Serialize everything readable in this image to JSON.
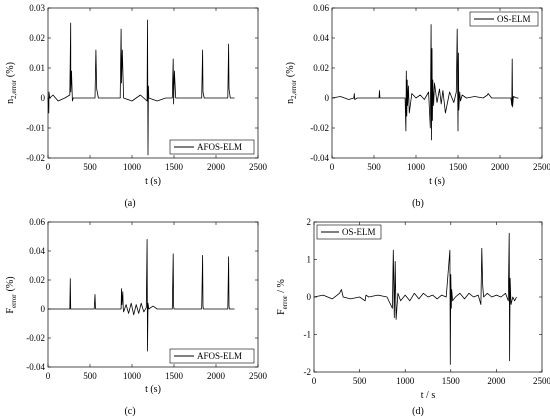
{
  "chart_data": [
    {
      "type": "line",
      "caption": "(a)",
      "xlabel": "t (s)",
      "ylabel_main": "n",
      "ylabel_sub": "2,error",
      "ylabel_unit": "(%)",
      "xlim": [
        0,
        2500
      ],
      "ylim": [
        -0.02,
        0.03
      ],
      "xticks": [
        0,
        500,
        1000,
        1500,
        2000,
        2500
      ],
      "yticks": [
        -0.02,
        -0.01,
        0,
        0.01,
        0.02,
        0.03
      ],
      "xtick_labels": [
        "0",
        "500",
        "1000",
        "1500",
        "2000",
        "2500"
      ],
      "ytick_labels": [
        "-0.02",
        "-0.01",
        "0",
        "0.01",
        "0.02",
        "0.03"
      ],
      "legend": {
        "label": "AFOS-ELM",
        "position": "bottom-right"
      },
      "series": [
        {
          "x": [
            0,
            10,
            12,
            20,
            60,
            120,
            200,
            260,
            270,
            272,
            280,
            290,
            300,
            400,
            500,
            560,
            570,
            580,
            600,
            700,
            800,
            860,
            870,
            875,
            885,
            900,
            1000,
            1100,
            1180,
            1185,
            1190,
            1195,
            1200,
            1300,
            1400,
            1480,
            1490,
            1495,
            1505,
            1520,
            1600,
            1700,
            1800,
            1830,
            1840,
            1845,
            1860,
            1900,
            2000,
            2100,
            2140,
            2150,
            2155,
            2170,
            2200,
            2220
          ],
          "y": [
            0,
            -0.005,
            0.002,
            0,
            0.001,
            -0.001,
            0,
            0.001,
            0.025,
            0.002,
            0.009,
            -0.001,
            0,
            0,
            0,
            0,
            0.016,
            0.003,
            0,
            0,
            0,
            0,
            0.023,
            0.005,
            0.016,
            0,
            -0.001,
            0.001,
            -0.001,
            0.026,
            -0.019,
            0.004,
            0,
            -0.001,
            0,
            0,
            0.013,
            -0.002,
            0.009,
            0,
            0,
            0,
            0,
            0,
            0.016,
            0.002,
            0,
            0,
            0,
            0,
            0,
            0.018,
            0.003,
            0,
            0,
            0
          ]
        }
      ]
    },
    {
      "type": "line",
      "caption": "(b)",
      "xlabel": "t (s)",
      "ylabel_main": "n",
      "ylabel_sub": "2,error",
      "ylabel_unit": "(%)",
      "xlim": [
        0,
        2500
      ],
      "ylim": [
        -0.04,
        0.06
      ],
      "xticks": [
        0,
        500,
        1000,
        1500,
        2000,
        2500
      ],
      "yticks": [
        -0.04,
        -0.02,
        0,
        0.02,
        0.04,
        0.06
      ],
      "xtick_labels": [
        "0",
        "500",
        "1000",
        "1500",
        "2000",
        "2500"
      ],
      "ytick_labels": [
        "-0.04",
        "-0.02",
        "0",
        "0.02",
        "0.04",
        "0.06"
      ],
      "legend": {
        "label": "OS-ELM",
        "position": "top-right"
      },
      "series": [
        {
          "x": [
            0,
            100,
            200,
            260,
            265,
            270,
            300,
            400,
            500,
            560,
            565,
            570,
            600,
            700,
            800,
            870,
            880,
            885,
            890,
            895,
            900,
            910,
            920,
            950,
            1000,
            1050,
            1100,
            1150,
            1170,
            1180,
            1185,
            1190,
            1195,
            1200,
            1210,
            1220,
            1250,
            1280,
            1300,
            1320,
            1350,
            1400,
            1450,
            1480,
            1490,
            1500,
            1505,
            1510,
            1520,
            1530,
            1550,
            1600,
            1700,
            1800,
            1850,
            1860,
            1900,
            2000,
            2100,
            2130,
            2140,
            2145,
            2150,
            2160,
            2200,
            2220
          ],
          "y": [
            0,
            0.001,
            -0.001,
            0,
            0.003,
            -0.001,
            0,
            0,
            0,
            0,
            0.005,
            0,
            0,
            0,
            0,
            0,
            -0.022,
            0.018,
            -0.012,
            0.012,
            -0.005,
            0.008,
            -0.01,
            0.003,
            0,
            0.002,
            -0.001,
            0.004,
            -0.02,
            0.049,
            -0.028,
            0.033,
            -0.015,
            0.012,
            -0.005,
            0.01,
            -0.003,
            0.006,
            -0.004,
            0.005,
            -0.01,
            0.004,
            -0.003,
            0.004,
            0.046,
            -0.022,
            0.03,
            -0.008,
            0.004,
            -0.002,
            0.002,
            0,
            0.001,
            0,
            0.002,
            0.003,
            0,
            0,
            0,
            0,
            -0.005,
            0.026,
            -0.006,
            0.001,
            0,
            0
          ]
        }
      ]
    },
    {
      "type": "line",
      "caption": "(c)",
      "xlabel": "t (s)",
      "ylabel_main": "F",
      "ylabel_sub": "error",
      "ylabel_unit": "(%)",
      "xlim": [
        0,
        2500
      ],
      "ylim": [
        -0.04,
        0.06
      ],
      "xticks": [
        0,
        500,
        1000,
        1500,
        2000,
        2500
      ],
      "yticks": [
        -0.04,
        -0.02,
        0,
        0.02,
        0.04,
        0.06
      ],
      "xtick_labels": [
        "0",
        "500",
        "1000",
        "1500",
        "2000",
        "2500"
      ],
      "ytick_labels": [
        "-0.04",
        "-0.02",
        "0",
        "0.02",
        "0.04",
        "0.06"
      ],
      "legend": {
        "label": "AFOS-ELM",
        "position": "bottom-right"
      },
      "series": [
        {
          "x": [
            0,
            100,
            200,
            260,
            265,
            270,
            300,
            400,
            500,
            550,
            560,
            565,
            600,
            700,
            800,
            870,
            875,
            880,
            890,
            895,
            900,
            930,
            960,
            990,
            1020,
            1050,
            1080,
            1110,
            1140,
            1170,
            1180,
            1185,
            1190,
            1200,
            1250,
            1300,
            1400,
            1480,
            1490,
            1495,
            1500,
            1550,
            1600,
            1700,
            1800,
            1830,
            1840,
            1845,
            1850,
            1900,
            2000,
            2100,
            2140,
            2150,
            2155,
            2160,
            2200,
            2220
          ],
          "y": [
            0,
            0,
            0,
            0,
            0.021,
            0,
            0,
            0,
            0,
            0,
            0.01,
            0,
            0,
            0,
            0,
            0,
            0.014,
            0.003,
            0.012,
            0.001,
            -0.002,
            0.003,
            -0.003,
            0.004,
            -0.004,
            0.003,
            -0.003,
            0.004,
            -0.002,
            0.001,
            0.048,
            -0.029,
            0.004,
            0,
            0.002,
            0,
            0,
            0,
            0.038,
            0.002,
            0,
            0,
            0,
            0,
            0,
            0,
            0.037,
            0.002,
            0,
            0,
            0,
            0,
            0,
            0.036,
            0.002,
            0,
            0,
            0
          ]
        }
      ]
    },
    {
      "type": "line",
      "caption": "(d)",
      "xlabel": "t / s",
      "ylabel_main": "F",
      "ylabel_sub": "error",
      "ylabel_unit": "/ %",
      "xlim": [
        0,
        2500
      ],
      "ylim": [
        -2,
        2
      ],
      "xticks": [
        0,
        500,
        1000,
        1500,
        2000,
        2500
      ],
      "yticks": [
        -2,
        -1,
        0,
        1,
        2
      ],
      "xtick_labels": [
        "0",
        "500",
        "1000",
        "1500",
        "2000",
        "2500"
      ],
      "ytick_labels": [
        "-2",
        "-1",
        "0",
        "1",
        "2"
      ],
      "legend": {
        "label": "OS-ELM",
        "position": "top-left"
      },
      "series": [
        {
          "x": [
            0,
            100,
            200,
            280,
            300,
            320,
            400,
            500,
            560,
            570,
            600,
            700,
            800,
            860,
            870,
            880,
            890,
            900,
            920,
            950,
            1000,
            1050,
            1100,
            1150,
            1200,
            1250,
            1300,
            1350,
            1400,
            1450,
            1490,
            1495,
            1500,
            1505,
            1510,
            1520,
            1550,
            1600,
            1650,
            1700,
            1750,
            1800,
            1830,
            1840,
            1850,
            1860,
            1900,
            1950,
            2000,
            2050,
            2100,
            2130,
            2140,
            2145,
            2150,
            2160,
            2180,
            2200,
            2220
          ],
          "y": [
            0,
            0.05,
            -0.05,
            0.1,
            0.2,
            0,
            -0.05,
            0,
            -0.1,
            0.05,
            0,
            0.05,
            0,
            -0.3,
            1.25,
            -0.55,
            0.95,
            -0.6,
            0.1,
            -0.1,
            0.05,
            -0.1,
            0.1,
            -0.05,
            0.1,
            0,
            0.05,
            -0.05,
            0.05,
            0,
            1.25,
            -1.8,
            0.6,
            -0.3,
            0.2,
            -0.1,
            0,
            0.1,
            -0.05,
            0.1,
            0,
            0.05,
            -0.2,
            1.3,
            0.3,
            0,
            0.1,
            0,
            0.05,
            0,
            0.1,
            -0.1,
            1.7,
            -1.7,
            0.5,
            -0.2,
            0,
            -0.1,
            0
          ]
        }
      ]
    }
  ]
}
